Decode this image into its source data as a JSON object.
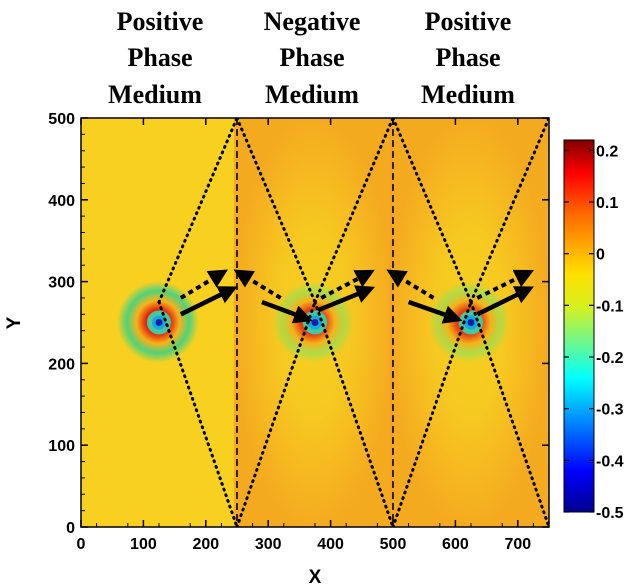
{
  "chart_data": {
    "type": "heatmap",
    "description_visible": "wave field simulation image",
    "xlabel": "X",
    "ylabel": "Y",
    "xlim": [
      0,
      750
    ],
    "ylim": [
      0,
      500
    ],
    "x_ticks": [
      0,
      100,
      200,
      300,
      400,
      500,
      600,
      700
    ],
    "y_ticks": [
      0,
      100,
      200,
      300,
      400,
      500
    ],
    "region_titles": [
      {
        "lines": [
          "Positive",
          "Phase",
          "Medium"
        ]
      },
      {
        "lines": [
          "Negative",
          "Phase",
          "Medium"
        ]
      },
      {
        "lines": [
          "Positive",
          "Phase",
          "Medium"
        ]
      }
    ],
    "interfaces_x": [
      250,
      500
    ],
    "sources": [
      {
        "x": 125,
        "y": 250
      },
      {
        "x": 375,
        "y": 250
      },
      {
        "x": 625,
        "y": 250
      }
    ],
    "dotted_rays": [
      [
        [
          125,
          275
        ],
        [
          250,
          500
        ]
      ],
      [
        [
          125,
          275
        ],
        [
          250,
          0
        ]
      ],
      [
        [
          250,
          500
        ],
        [
          375,
          275
        ]
      ],
      [
        [
          250,
          0
        ],
        [
          375,
          275
        ]
      ],
      [
        [
          375,
          275
        ],
        [
          500,
          500
        ]
      ],
      [
        [
          375,
          275
        ],
        [
          500,
          0
        ]
      ],
      [
        [
          500,
          500
        ],
        [
          625,
          275
        ]
      ],
      [
        [
          500,
          0
        ],
        [
          625,
          275
        ]
      ],
      [
        [
          625,
          275
        ],
        [
          750,
          500
        ]
      ],
      [
        [
          625,
          275
        ],
        [
          750,
          0
        ]
      ]
    ],
    "solid_arrows": [
      [
        [
          160,
          260
        ],
        [
          240,
          290
        ]
      ],
      [
        [
          290,
          275
        ],
        [
          360,
          255
        ]
      ],
      [
        [
          380,
          265
        ],
        [
          460,
          290
        ]
      ],
      [
        [
          525,
          275
        ],
        [
          600,
          255
        ]
      ],
      [
        [
          635,
          260
        ],
        [
          715,
          290
        ]
      ]
    ],
    "dotted_arrows": [
      [
        [
          160,
          280
        ],
        [
          225,
          310
        ]
      ],
      [
        [
          320,
          280
        ],
        [
          255,
          310
        ]
      ],
      [
        [
          385,
          280
        ],
        [
          460,
          310
        ]
      ],
      [
        [
          565,
          280
        ],
        [
          500,
          310
        ]
      ],
      [
        [
          635,
          280
        ],
        [
          715,
          310
        ]
      ]
    ],
    "colorbar": {
      "min": -0.5,
      "max": 0.22,
      "ticks": [
        0.2,
        0.1,
        0,
        -0.1,
        -0.2,
        -0.3,
        -0.4,
        -0.5
      ],
      "tick_labels": [
        "0.2",
        "0.1",
        "0",
        "-0.1",
        "-0.2",
        "-0.3",
        "-0.4",
        "-0.5"
      ],
      "colormap": "jet"
    }
  }
}
